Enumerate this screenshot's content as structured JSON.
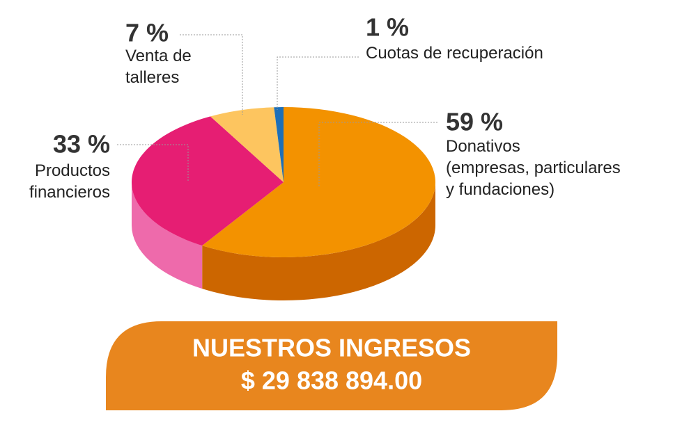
{
  "chart_data": {
    "type": "pie3d",
    "title": "NUESTROS INGRESOS",
    "subtitle": "$ 29 838 894.00",
    "categories": [
      "Donativos\n(empresas, particulares\ny fundaciones)",
      "Productos\nfinancieros",
      "Venta de\ntalleres",
      "Cuotas de recuperación"
    ],
    "values": [
      59,
      33,
      7,
      1
    ],
    "value_labels": [
      "59 %",
      "33 %",
      "7 %",
      "1 %"
    ],
    "colors": [
      "#f39200",
      "#e61e73",
      "#fdc55f",
      "#1d6fb8"
    ],
    "side_colors": [
      "#cc6600",
      "#ee6aab",
      "#e0a840",
      "#14508a"
    ]
  }
}
